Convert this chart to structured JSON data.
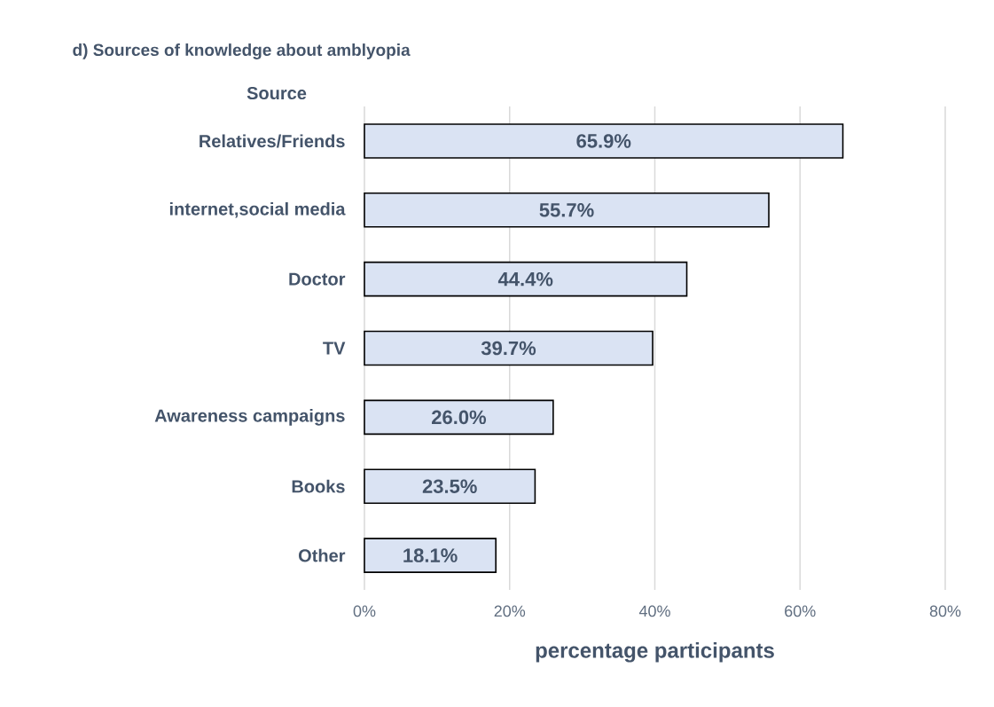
{
  "chart_data": {
    "type": "bar",
    "orientation": "horizontal",
    "title": "d) Sources of knowledge about amblyopia",
    "ylabel": "Source",
    "xlabel": "percentage  participants",
    "categories": [
      "Relatives/Friends",
      "internet,social media",
      "Doctor",
      "TV",
      "Awareness campaigns",
      "Books",
      "Other"
    ],
    "values": [
      65.9,
      55.7,
      44.4,
      39.7,
      26.0,
      23.5,
      18.1
    ],
    "value_labels": [
      "65.9%",
      "55.7%",
      "44.4%",
      "39.7%",
      "26.0%",
      "23.5%",
      "18.1%"
    ],
    "color": "#dae3f3",
    "xlim": [
      0,
      80
    ],
    "xticks": [
      {
        "value": 0,
        "label": "0%"
      },
      {
        "value": 20,
        "label": "20%"
      },
      {
        "value": 40,
        "label": "40%"
      },
      {
        "value": 60,
        "label": "60%"
      },
      {
        "value": 80,
        "label": "80%"
      }
    ],
    "grid": "x"
  }
}
